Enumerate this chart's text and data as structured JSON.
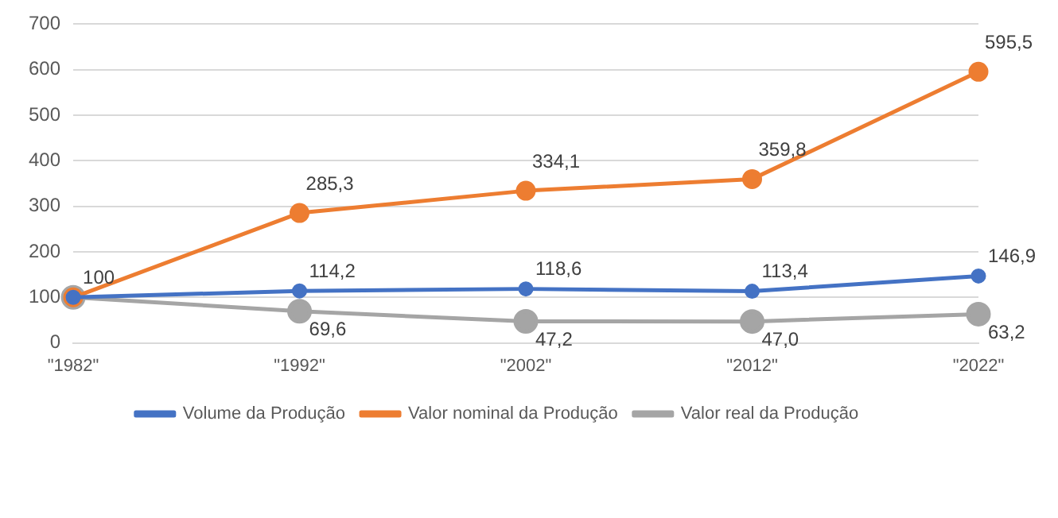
{
  "chart_data": {
    "type": "line",
    "categories": [
      "\"1982\"",
      "\"1992\"",
      "\"2002\"",
      "\"2012\"",
      "\"2022\""
    ],
    "series": [
      {
        "name": "Volume da Produção",
        "color": "#4472c4",
        "values": [
          100,
          114.2,
          118.6,
          113.4,
          146.9
        ],
        "value_labels": [
          "100",
          "114,2",
          "118,6",
          "113,4",
          "146,9"
        ]
      },
      {
        "name": "Valor nominal da Produção",
        "color": "#ed7d31",
        "values": [
          100,
          285.3,
          334.1,
          359.8,
          595.5
        ],
        "value_labels": [
          null,
          "285,3",
          "334,1",
          "359,8",
          "595,5"
        ]
      },
      {
        "name": "Valor real da Produção",
        "color": "#a5a5a5",
        "values": [
          100,
          69.6,
          47.2,
          47.0,
          63.2
        ],
        "value_labels": [
          null,
          "69,6",
          "47,2",
          "47,0",
          "63,2"
        ]
      }
    ],
    "ylim": [
      0,
      700
    ],
    "yticks": [
      0,
      100,
      200,
      300,
      400,
      500,
      600,
      700
    ],
    "grid": "y",
    "legend": "bottom",
    "marker": "circle",
    "line_style": "solid"
  }
}
